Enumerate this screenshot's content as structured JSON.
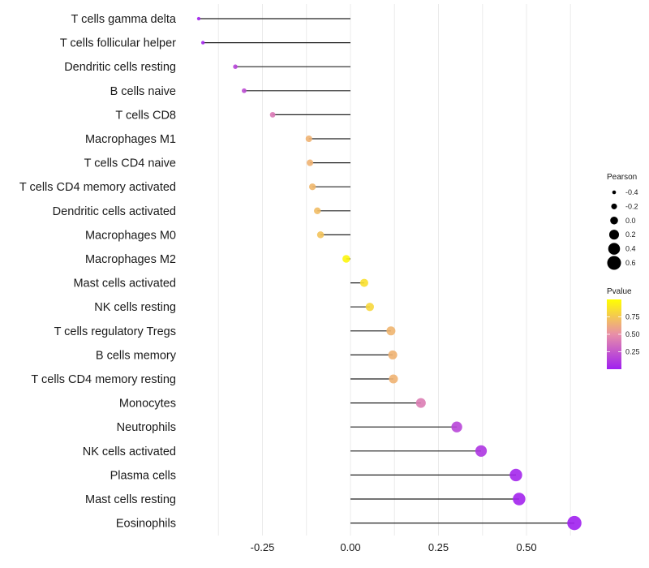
{
  "chart_data": {
    "type": "lollipop",
    "title": "",
    "xlabel": "",
    "ylabel": "",
    "xlim": [
      -0.46,
      0.67
    ],
    "x_ticks": [
      -0.25,
      0.0,
      0.25,
      0.5
    ],
    "x_tick_labels": [
      "-0.25",
      "0.00",
      "0.25",
      "0.50"
    ],
    "grid": true,
    "categories": [
      "T cells gamma delta",
      "T cells follicular helper",
      "Dendritic cells resting",
      "B cells naive",
      "T cells CD8",
      "Macrophages M1",
      "T cells CD4 naive",
      "T cells CD4 memory activated",
      "Dendritic cells activated",
      "Macrophages M0",
      "Macrophages M2",
      "Mast cells activated",
      "NK cells resting",
      "T cells regulatory  Tregs ",
      "B cells memory",
      "T cells CD4 memory resting",
      "Monocytes",
      "Neutrophils",
      "NK cells activated",
      "Plasma cells",
      "Mast cells resting",
      "Eosinophils"
    ],
    "pearson": [
      -0.431,
      -0.419,
      -0.327,
      -0.302,
      -0.221,
      -0.118,
      -0.115,
      -0.108,
      -0.094,
      -0.085,
      -0.012,
      0.039,
      0.055,
      0.115,
      0.12,
      0.122,
      0.2,
      0.302,
      0.371,
      0.47,
      0.479,
      0.636
    ],
    "pvalue": [
      0.02,
      0.03,
      0.16,
      0.2,
      0.4,
      0.66,
      0.66,
      0.68,
      0.7,
      0.73,
      0.96,
      0.86,
      0.82,
      0.67,
      0.66,
      0.66,
      0.42,
      0.17,
      0.1,
      0.03,
      0.02,
      0.002
    ],
    "legend": {
      "size_title": "Pearson",
      "size_breaks": [
        -0.4,
        -0.2,
        0.0,
        0.2,
        0.4,
        0.6
      ],
      "size_labels": [
        "-0.4",
        "-0.2",
        "0.0",
        "0.2",
        "0.4",
        "0.6"
      ],
      "color_title": "Pvalue",
      "color_breaks": [
        0.25,
        0.5,
        0.75
      ],
      "color_labels": [
        "0.25",
        "0.50",
        "0.75"
      ],
      "color_range": [
        0.0,
        1.0
      ],
      "color_low": "#a020f0",
      "color_mid": "#e88fa8",
      "color_high": "#ffff00",
      "placement": "right"
    }
  }
}
